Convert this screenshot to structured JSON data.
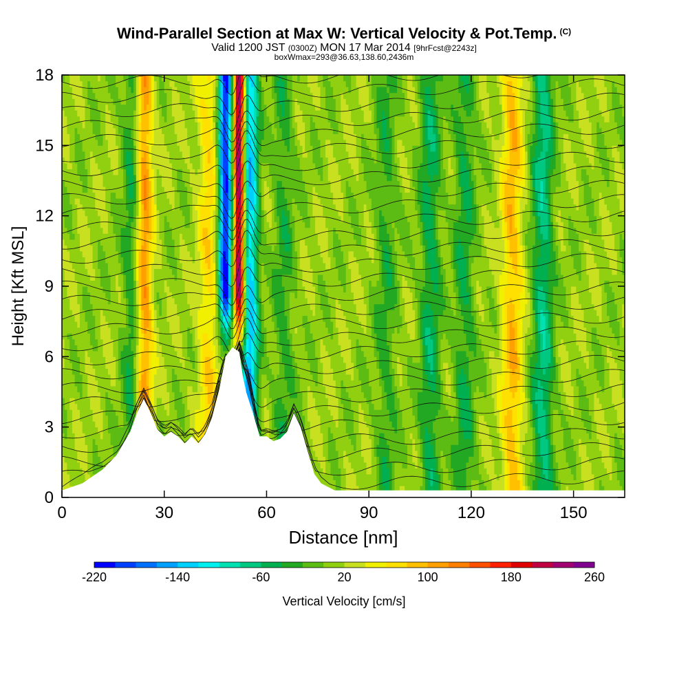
{
  "header": {
    "title": "Wind-Parallel Section at Max W: Vertical Velocity & Pot.Temp.",
    "title_mark": "(C)",
    "valid_a": "Valid 1200 JST",
    "valid_b": "(0300Z)",
    "valid_c": "MON 17 Mar 2014",
    "valid_d": "[9hrFcst@2243z]",
    "box_info": "boxWmax=293@36.63,138.60,2436m"
  },
  "chart_data": {
    "type": "heatmap",
    "xlabel": "Distance [nm]",
    "ylabel": "Height [Kft MSL]",
    "xlim": [
      0,
      165
    ],
    "ylim": [
      0,
      18
    ],
    "x_ticks": [
      "0",
      "30",
      "60",
      "90",
      "120",
      "150"
    ],
    "y_ticks": [
      "0",
      "3",
      "6",
      "9",
      "12",
      "15",
      "18"
    ],
    "colorbar": {
      "label": "Vertical Velocity [cm/s]",
      "tick_labels": [
        "-220",
        "-140",
        "-60",
        "20",
        "100",
        "180",
        "260"
      ],
      "min": -220,
      "step": 20,
      "colors": [
        "#0000ff",
        "#0040ff",
        "#0070ff",
        "#00a0ff",
        "#00d0ff",
        "#00f0f0",
        "#00e0b0",
        "#00c880",
        "#00b050",
        "#22a822",
        "#5cbc14",
        "#90d010",
        "#c8e020",
        "#f0f000",
        "#ffe000",
        "#ffc000",
        "#ffa000",
        "#ff8000",
        "#ff5000",
        "#ff2000",
        "#e00000",
        "#c00040",
        "#a00070",
        "#800090"
      ]
    },
    "terrain_profile": [
      [
        0,
        0.3
      ],
      [
        6,
        0.6
      ],
      [
        12,
        1.2
      ],
      [
        16,
        1.8
      ],
      [
        20,
        2.8
      ],
      [
        22,
        3.6
      ],
      [
        24,
        4.2
      ],
      [
        26,
        3.6
      ],
      [
        28,
        2.9
      ],
      [
        30,
        2.6
      ],
      [
        32,
        2.8
      ],
      [
        34,
        2.6
      ],
      [
        36,
        2.3
      ],
      [
        38,
        2.6
      ],
      [
        40,
        2.3
      ],
      [
        42,
        2.7
      ],
      [
        44,
        3.4
      ],
      [
        46,
        4.5
      ],
      [
        48,
        6.0
      ],
      [
        50,
        6.4
      ],
      [
        52,
        6.2
      ],
      [
        53,
        5.2
      ],
      [
        54,
        4.5
      ],
      [
        56,
        3.6
      ],
      [
        58,
        2.6
      ],
      [
        60,
        2.6
      ],
      [
        62,
        2.4
      ],
      [
        64,
        2.5
      ],
      [
        66,
        2.8
      ],
      [
        68,
        3.6
      ],
      [
        70,
        3.0
      ],
      [
        72,
        2.0
      ],
      [
        74,
        1.0
      ],
      [
        76,
        0.6
      ],
      [
        80,
        0.3
      ],
      [
        165,
        0.3
      ]
    ],
    "velocity_features": [
      {
        "x": 52,
        "kind": "updraft",
        "peak": 260
      },
      {
        "x": 48,
        "kind": "downdraft",
        "peak": -220
      },
      {
        "x": 55,
        "kind": "downdraft",
        "peak": -150
      },
      {
        "x": 24,
        "kind": "updraft",
        "peak": 120
      },
      {
        "x": 21,
        "kind": "downdraft",
        "peak": -60
      },
      {
        "x": 43,
        "kind": "updraft",
        "peak": 60
      },
      {
        "x": 65,
        "kind": "downdraft",
        "peak": -40
      },
      {
        "x": 95,
        "kind": "downdraft",
        "peak": -40
      },
      {
        "x": 108,
        "kind": "downdraft",
        "peak": -60
      },
      {
        "x": 118,
        "kind": "downdraft",
        "peak": -50
      },
      {
        "x": 132,
        "kind": "updraft",
        "peak": 80
      },
      {
        "x": 141,
        "kind": "downdraft",
        "peak": -80
      }
    ]
  }
}
